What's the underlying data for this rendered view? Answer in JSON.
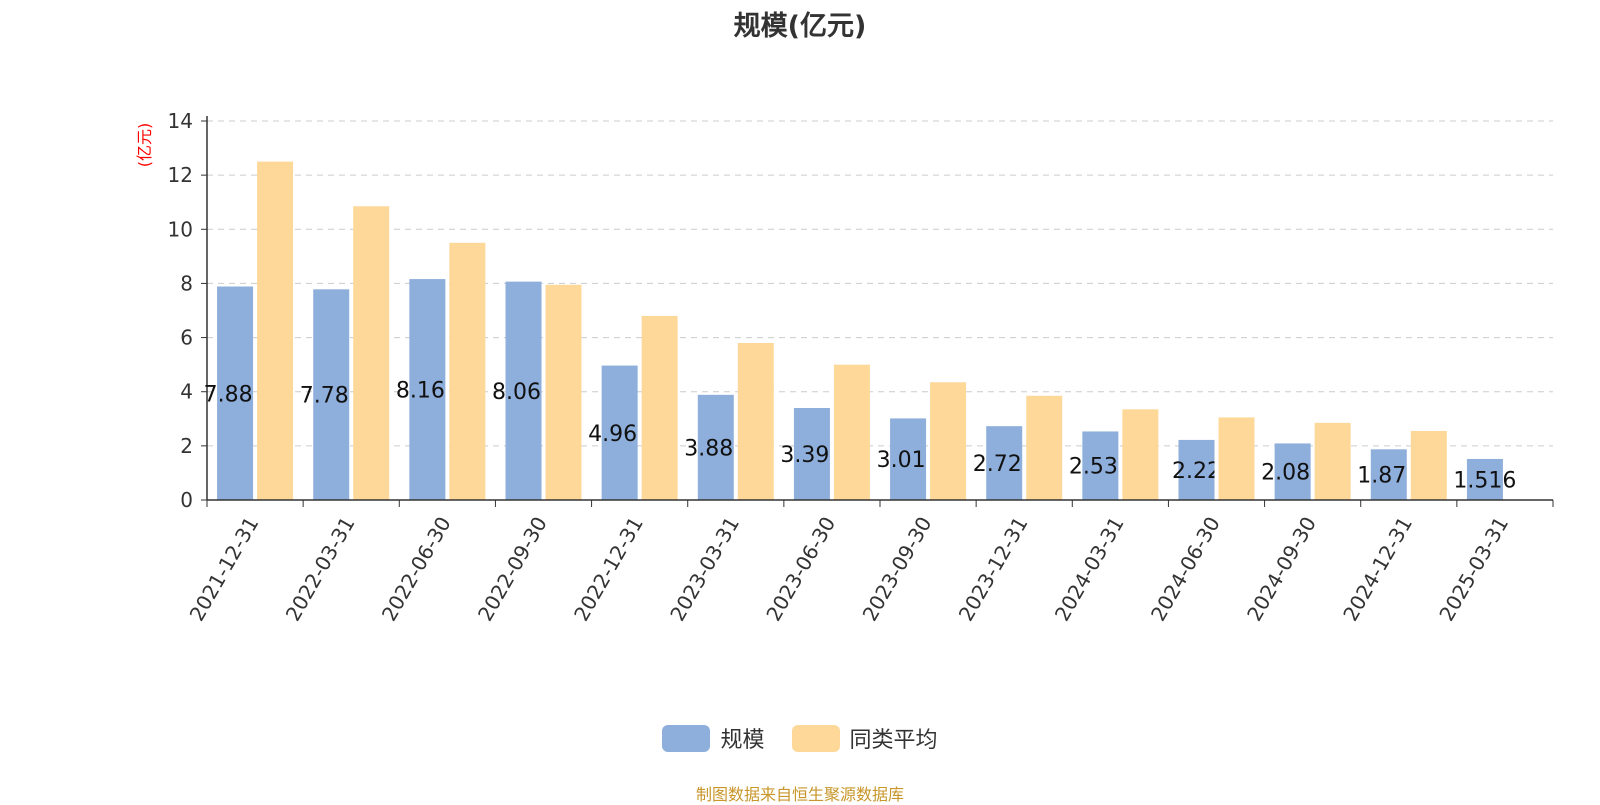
{
  "chart_data": {
    "type": "bar",
    "title": "规模(亿元)",
    "ylabel": "(亿元)",
    "xlabel": "",
    "ylim": [
      0,
      14
    ],
    "yticks": [
      0,
      2,
      4,
      6,
      8,
      10,
      12,
      14
    ],
    "grid": true,
    "legend_position": "bottom-center",
    "categories": [
      "2021-12-31",
      "2022-03-31",
      "2022-06-30",
      "2022-09-30",
      "2022-12-31",
      "2023-03-31",
      "2023-06-30",
      "2023-09-30",
      "2023-12-31",
      "2024-03-31",
      "2024-06-30",
      "2024-09-30",
      "2024-12-31",
      "2025-03-31"
    ],
    "series": [
      {
        "name": "规模",
        "color": "#8eaedb",
        "values": [
          7.886,
          7.782,
          8.161,
          8.067,
          4.966,
          3.885,
          3.399,
          3.014,
          2.727,
          2.532,
          2.22,
          2.089,
          1.872,
          1.516
        ],
        "labels": [
          "7.886",
          "7.782",
          "8.161",
          "8.067",
          "4.966",
          "3.885",
          "3.399",
          "3.014",
          "2.727",
          "2.532",
          "2.22",
          "2.089",
          "1.872",
          "1.516"
        ]
      },
      {
        "name": "同类平均",
        "color": "#fdd899",
        "values": [
          12.5,
          10.85,
          9.5,
          7.95,
          6.8,
          5.8,
          5.0,
          4.35,
          3.85,
          3.35,
          3.05,
          2.85,
          2.55,
          null
        ]
      }
    ]
  },
  "source_note": "制图数据来自恒生聚源数据库",
  "colors": {
    "axis_label": "#ff0000",
    "tick_text": "#333333",
    "grid": "#cccccc",
    "source_note": "#c8962a"
  }
}
